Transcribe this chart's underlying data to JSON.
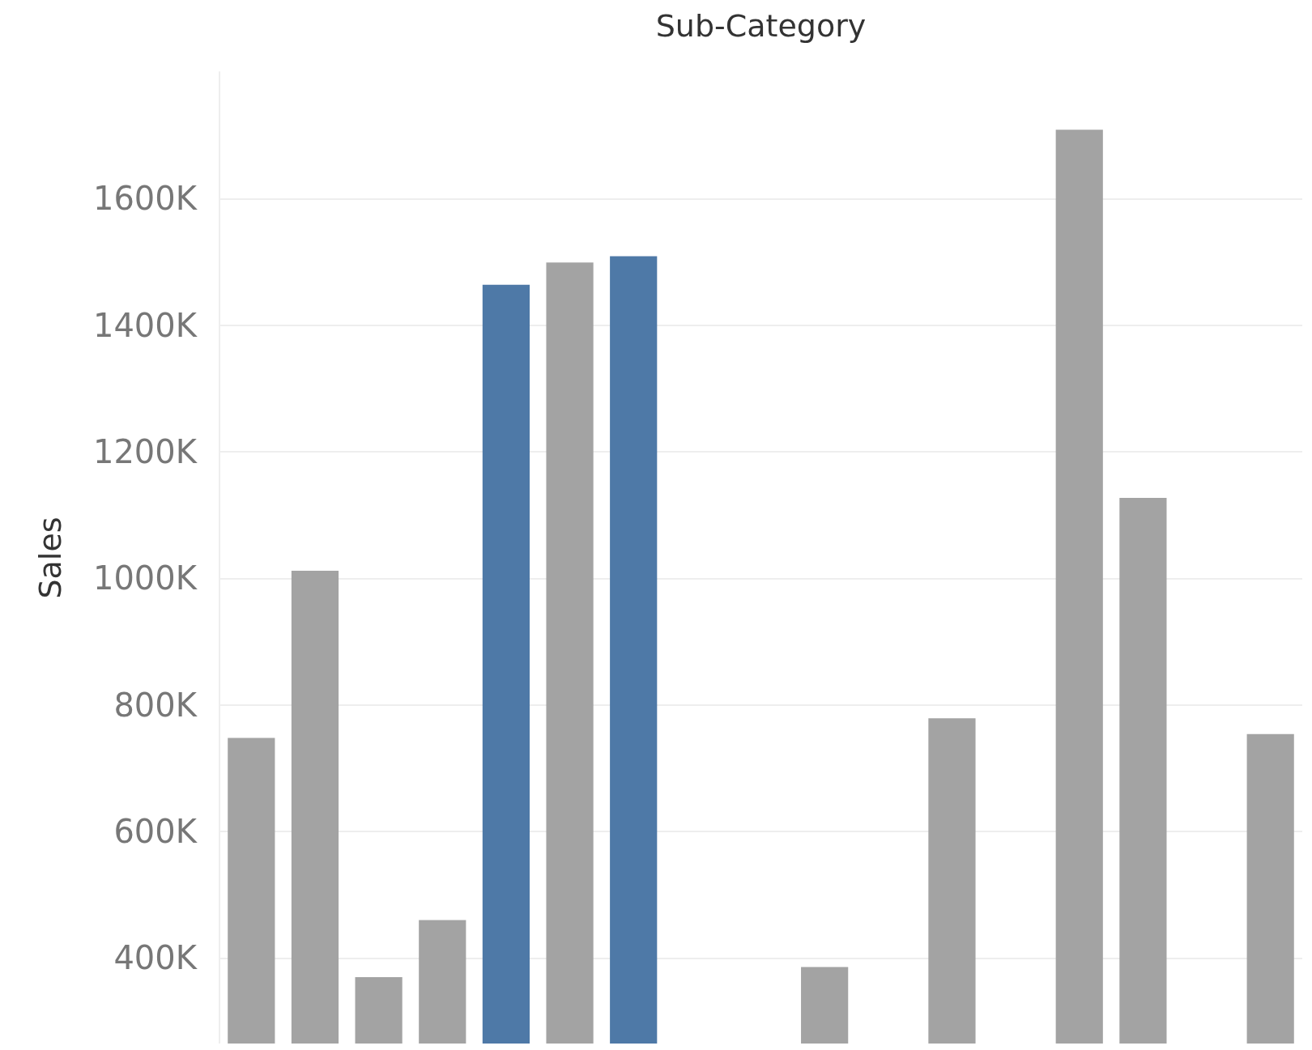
{
  "chart_data": {
    "type": "bar",
    "xlabel": "Sub-Category",
    "ylabel": "Sales",
    "categories": [
      null,
      null,
      null,
      null,
      null,
      null,
      null,
      null,
      null,
      null,
      null,
      null,
      null,
      null,
      null,
      null,
      null
    ],
    "values": [
      748,
      1012,
      370,
      460,
      1464,
      1499,
      1509,
      null,
      null,
      386,
      null,
      779,
      null,
      1709,
      1127,
      null,
      754
    ],
    "colors": [
      "#a3a3a3",
      "#a3a3a3",
      "#a3a3a3",
      "#a3a3a3",
      "#4e79a7",
      "#a3a3a3",
      "#4e79a7",
      "#a3a3a3",
      "#a3a3a3",
      "#a3a3a3",
      "#a3a3a3",
      "#a3a3a3",
      "#a3a3a3",
      "#a3a3a3",
      "#a3a3a3",
      "#a3a3a3",
      "#a3a3a3"
    ],
    "ylim": [
      265,
      1800
    ],
    "yticks": [
      {
        "value": 400,
        "label": "400K"
      },
      {
        "value": 600,
        "label": "600K"
      },
      {
        "value": 800,
        "label": "800K"
      },
      {
        "value": 1000,
        "label": "1000K"
      },
      {
        "value": 1200,
        "label": "1200K"
      },
      {
        "value": 1400,
        "label": "1400K"
      },
      {
        "value": 1600,
        "label": "1600K"
      }
    ],
    "grid": "y",
    "tick_labels": "y"
  }
}
